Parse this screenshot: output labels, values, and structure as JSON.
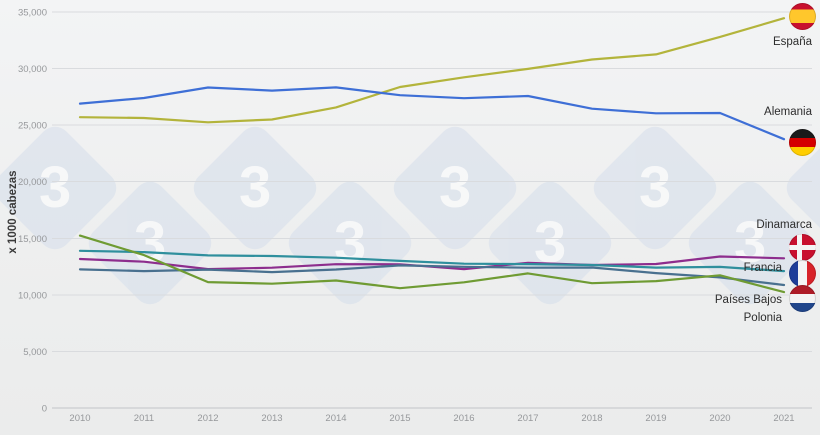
{
  "watermark": {
    "glyph": "3",
    "color": "#d8e0ec"
  },
  "chart_data": {
    "type": "line",
    "title": "",
    "xlabel": "",
    "ylabel": "x 1000 cabezas",
    "ylim": [
      0,
      35000
    ],
    "ytick_step": 5000,
    "ytick_labels": [
      "0",
      "5,000",
      "10,000",
      "15,000",
      "20,000",
      "25,000",
      "30,000",
      "35,000"
    ],
    "categories": [
      "2010",
      "2011",
      "2012",
      "2013",
      "2014",
      "2015",
      "2016",
      "2017",
      "2018",
      "2019",
      "2020",
      "2021"
    ],
    "grid": "horizontal",
    "legend_position": "right-inline-labels",
    "series": [
      {
        "id": "espana",
        "name": "España",
        "color": "#b3b43b",
        "flag": "flag-spain",
        "values": [
          25700,
          25630,
          25250,
          25500,
          26570,
          28370,
          29230,
          29970,
          30800,
          31250,
          32800,
          34450
        ]
      },
      {
        "id": "alemania",
        "name": "Alemania",
        "color": "#3e6fd6",
        "flag": "flag-germany",
        "values": [
          26900,
          27400,
          28330,
          28050,
          28340,
          27650,
          27380,
          27580,
          26450,
          26050,
          26070,
          23760
        ]
      },
      {
        "id": "dinamarca",
        "name": "Dinamarca",
        "color": "#8d2d8d",
        "flag": "flag-denmark",
        "values": [
          13170,
          12930,
          12280,
          12400,
          12710,
          12700,
          12280,
          12830,
          12640,
          12730,
          13390,
          13230
        ]
      },
      {
        "id": "francia",
        "name": "Francia",
        "color": "#2f8f9d",
        "flag": "flag-france",
        "values": [
          13890,
          13780,
          13490,
          13430,
          13280,
          13000,
          12750,
          12720,
          12640,
          12410,
          12470,
          12100
        ]
      },
      {
        "id": "paises-bajos",
        "name": "Países Bajos",
        "color": "#49708f",
        "flag": "flag-netherlands",
        "values": [
          12250,
          12100,
          12230,
          12010,
          12240,
          12600,
          12480,
          12400,
          12420,
          11920,
          11540,
          10870
        ]
      },
      {
        "id": "polonia",
        "name": "Polonia",
        "color": "#6f9b33",
        "flag": null,
        "values": [
          15240,
          13510,
          11130,
          10990,
          11270,
          10590,
          11110,
          11900,
          11030,
          11220,
          11730,
          10240
        ]
      }
    ]
  }
}
